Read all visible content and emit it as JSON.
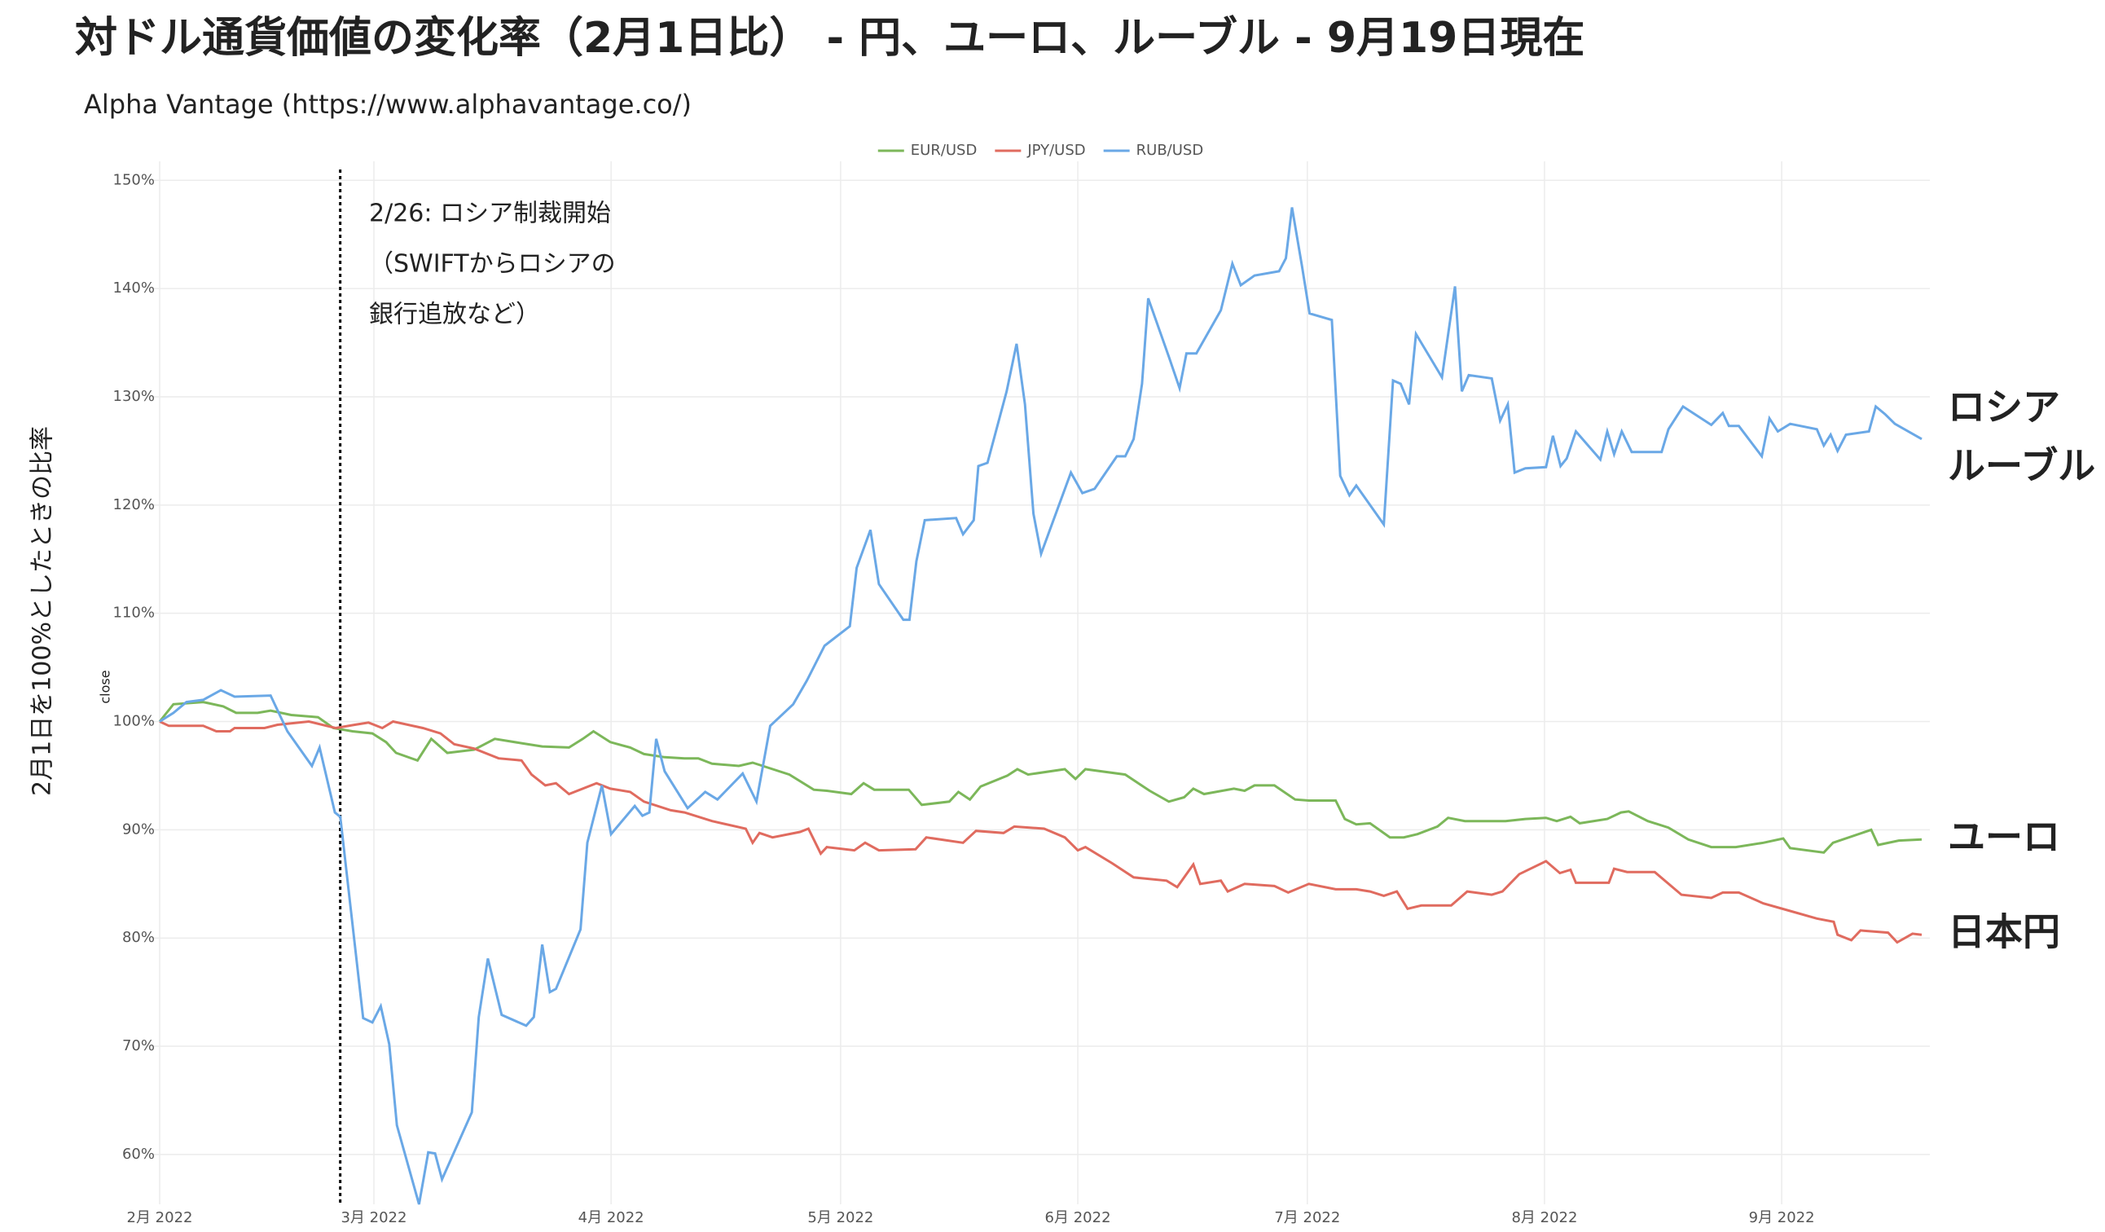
{
  "chart_data": {
    "type": "line",
    "title": "対ドル通貨価値の変化率（2月1日比） - 円、ユーロ、ルーブル - 9月19日現在",
    "subtitle": "Alpha Vantage (https://www.alphavantage.co/)",
    "y_axis_label": "2月1日を100%としたときの比率",
    "y_axis_sublabel": "close",
    "annotation": {
      "x": 23.6,
      "lines": [
        "2/26: ロシア制裁開始",
        "（SWIFTからロシアの",
        "銀行追放など）"
      ]
    },
    "xlim": [
      0,
      230.3
    ],
    "ylim": [
      55.4,
      151
    ],
    "xticks": [
      {
        "value": 0,
        "label": "2月 2022"
      },
      {
        "value": 28,
        "label": "3月 2022"
      },
      {
        "value": 59,
        "label": "4月 2022"
      },
      {
        "value": 89,
        "label": "5月 2022"
      },
      {
        "value": 120,
        "label": "6月 2022"
      },
      {
        "value": 150,
        "label": "7月 2022"
      },
      {
        "value": 181,
        "label": "8月 2022"
      },
      {
        "value": 212,
        "label": "9月 2022"
      }
    ],
    "yticks": [
      {
        "value": 60,
        "label": "60%"
      },
      {
        "value": 70,
        "label": "70%"
      },
      {
        "value": 80,
        "label": "80%"
      },
      {
        "value": 90,
        "label": "90%"
      },
      {
        "value": 100,
        "label": "100%"
      },
      {
        "value": 110,
        "label": "110%"
      },
      {
        "value": 120,
        "label": "120%"
      },
      {
        "value": 130,
        "label": "130%"
      },
      {
        "value": 140,
        "label": "140%"
      },
      {
        "value": 150,
        "label": "150%"
      }
    ],
    "grid": true,
    "legend": "top",
    "series": [
      {
        "name": "EUR/USD",
        "color": "#7cb75a",
        "end_label": [
          "ユーロ"
        ],
        "x": [
          0,
          1.8,
          5.7,
          8.3,
          10,
          12.8,
          14.5,
          17.2,
          20.7,
          22.7,
          25.2,
          27.8,
          29.6,
          30.9,
          33.7,
          35.5,
          37.6,
          41.1,
          43.8,
          47.3,
          50,
          53.5,
          55.3,
          56.7,
          58.9,
          61.5,
          63.3,
          66,
          68.6,
          70.4,
          72.2,
          75.7,
          77.5,
          82.3,
          85.5,
          87.2,
          90.4,
          92,
          93.4,
          97.9,
          99.6,
          103.2,
          104.4,
          105.9,
          107.3,
          110.8,
          112.1,
          113.5,
          118.3,
          119.7,
          121,
          126.2,
          129.4,
          131.9,
          133.9,
          135.1,
          136.5,
          140.4,
          141.8,
          143.1,
          145.7,
          148.4,
          150.2,
          153.7,
          154.9,
          156.4,
          158.2,
          160.8,
          162.6,
          164.4,
          167,
          168.4,
          170.6,
          174.1,
          175.9,
          178.5,
          181.2,
          182.6,
          184.4,
          185.6,
          189.2,
          191,
          192,
          194.5,
          197.2,
          199.8,
          202.8,
          206,
          209.6,
          212.2,
          213.1,
          217.5,
          218.7,
          223.7,
          224.6,
          227.3,
          230.3
        ],
        "values": [
          100,
          101.6,
          101.8,
          101.4,
          100.8,
          100.8,
          101,
          100.6,
          100.4,
          99.4,
          99.1,
          98.9,
          98.1,
          97.1,
          96.4,
          98.4,
          97.1,
          97.4,
          98.4,
          98,
          97.7,
          97.6,
          98.4,
          99.1,
          98.1,
          97.6,
          97,
          96.7,
          96.6,
          96.6,
          96.1,
          95.9,
          96.2,
          95.1,
          93.7,
          93.6,
          93.3,
          94.3,
          93.7,
          93.7,
          92.3,
          92.6,
          93.5,
          92.8,
          94,
          95,
          95.6,
          95.1,
          95.6,
          94.7,
          95.6,
          95.1,
          93.6,
          92.6,
          93,
          93.8,
          93.3,
          93.8,
          93.6,
          94.1,
          94.1,
          92.8,
          92.7,
          92.7,
          91,
          90.5,
          90.6,
          89.3,
          89.3,
          89.6,
          90.3,
          91.1,
          90.8,
          90.8,
          90.8,
          91,
          91.1,
          90.8,
          91.2,
          90.6,
          91,
          91.6,
          91.7,
          90.8,
          90.2,
          89.1,
          88.4,
          88.4,
          88.8,
          89.2,
          88.3,
          87.9,
          88.8,
          90,
          88.6,
          89,
          89.1
        ]
      },
      {
        "name": "JPY/USD",
        "color": "#e06b5f",
        "end_label": [
          "日本円"
        ],
        "x": [
          0,
          1.2,
          5.7,
          7.4,
          9.2,
          9.8,
          13.7,
          15.4,
          19.5,
          23,
          25.5,
          27.3,
          29.1,
          30.5,
          34.4,
          36.7,
          38.5,
          41.1,
          44.3,
          47.3,
          48.6,
          50.4,
          51.8,
          53.5,
          57.1,
          58.9,
          61.5,
          63.3,
          66.8,
          68.6,
          72.2,
          76.6,
          77.5,
          78.4,
          80.1,
          83.7,
          84.8,
          86.4,
          87.2,
          90.8,
          92.2,
          94,
          98.8,
          100.2,
          105,
          106.7,
          110.3,
          111.7,
          115.6,
          118.3,
          120,
          121,
          124.5,
          127.3,
          131.6,
          133,
          135.1,
          136,
          138.7,
          139.6,
          141.8,
          145.7,
          147.5,
          150.2,
          153.7,
          156.4,
          158.2,
          160,
          161.7,
          163.1,
          164.9,
          168.8,
          170.9,
          174.1,
          175.5,
          177.7,
          181.2,
          183,
          184.4,
          185.1,
          189.4,
          190.1,
          191.8,
          195.4,
          198.9,
          202.8,
          204.3,
          206.4,
          209.6,
          213.1,
          216.6,
          218.8,
          219.3,
          221.1,
          222.3,
          225.9,
          227.1,
          229.1,
          230.3
        ],
        "values": [
          100,
          99.6,
          99.6,
          99.1,
          99.1,
          99.4,
          99.4,
          99.7,
          100,
          99.4,
          99.7,
          99.9,
          99.4,
          100,
          99.4,
          98.9,
          97.9,
          97.5,
          96.6,
          96.4,
          95.1,
          94.1,
          94.3,
          93.3,
          94.3,
          93.8,
          93.5,
          92.6,
          91.8,
          91.6,
          90.8,
          90.1,
          88.8,
          89.7,
          89.3,
          89.8,
          90.1,
          87.8,
          88.4,
          88.1,
          88.8,
          88.1,
          88.2,
          89.3,
          88.8,
          89.9,
          89.7,
          90.3,
          90.1,
          89.3,
          88.1,
          88.4,
          86.9,
          85.6,
          85.3,
          84.7,
          86.8,
          85,
          85.3,
          84.3,
          85,
          84.8,
          84.2,
          85,
          84.5,
          84.5,
          84.3,
          83.9,
          84.3,
          82.7,
          83,
          83,
          84.3,
          84,
          84.3,
          85.9,
          87.1,
          86,
          86.3,
          85.1,
          85.1,
          86.4,
          86.1,
          86.1,
          84,
          83.7,
          84.2,
          84.2,
          83.2,
          82.5,
          81.8,
          81.5,
          80.3,
          79.8,
          80.7,
          80.5,
          79.6,
          80.4,
          80.3
        ]
      },
      {
        "name": "RUB/USD",
        "color": "#6aa8e6",
        "end_label": [
          "ロシア",
          "ルーブル"
        ],
        "x": [
          0,
          1.8,
          3.5,
          5.7,
          8,
          9.8,
          14.5,
          16.7,
          19.9,
          20.9,
          22.9,
          23.6,
          26.6,
          27.8,
          28.9,
          30,
          31,
          33.9,
          35.1,
          36,
          36.9,
          40.8,
          41.7,
          42.9,
          44.7,
          47.9,
          48.9,
          50,
          51,
          51.8,
          55,
          55.9,
          57.8,
          59,
          62.1,
          63.1,
          64,
          64.9,
          66,
          69,
          71.3,
          72.9,
          76.2,
          78,
          79.8,
          82.8,
          84.6,
          86.9,
          90.2,
          91.1,
          92.9,
          94,
          97.2,
          98,
          98.9,
          100,
          104.1,
          105,
          106.4,
          107,
          108.2,
          110.7,
          112,
          113.1,
          114.2,
          115.2,
          119.1,
          120.6,
          122.2,
          125.1,
          126.2,
          127.3,
          128.4,
          129.2,
          131.9,
          133.3,
          134.2,
          135.5,
          138.7,
          140.2,
          141.3,
          143.1,
          146.3,
          147.2,
          148,
          149.3,
          150.3,
          153.2,
          154.3,
          155.5,
          156.4,
          160,
          161.2,
          162.2,
          163.3,
          164.2,
          167.6,
          169.3,
          170.2,
          171.1,
          174.1,
          175.2,
          176.2,
          177.1,
          178.5,
          181.2,
          182.1,
          183.1,
          183.9,
          185.1,
          188.3,
          189.2,
          190.1,
          191.1,
          192.4,
          196.3,
          197.2,
          199.1,
          202.8,
          204.3,
          205.1,
          206.4,
          209.4,
          210.4,
          211.5,
          213.1,
          216.6,
          217.5,
          218.4,
          219.3,
          220.4,
          223.4,
          224.3,
          225.5,
          226.8,
          230.3
        ],
        "values": [
          100,
          100.8,
          101.8,
          102,
          102.9,
          102.3,
          102.4,
          99.1,
          95.9,
          97.6,
          91.6,
          91.2,
          72.6,
          72.2,
          73.7,
          70.2,
          62.7,
          55.4,
          60.2,
          60.1,
          57.7,
          63.9,
          72.7,
          78.1,
          72.9,
          71.9,
          72.7,
          79.4,
          75,
          75.3,
          80.8,
          88.8,
          94.1,
          89.6,
          92.2,
          91.3,
          91.6,
          98.4,
          95.4,
          92,
          93.5,
          92.8,
          95.2,
          92.6,
          99.6,
          101.6,
          103.8,
          107,
          108.8,
          114.2,
          117.7,
          112.7,
          109.4,
          109.4,
          114.8,
          118.6,
          118.8,
          117.3,
          118.6,
          123.6,
          123.9,
          130.5,
          134.9,
          129.3,
          119.2,
          115.5,
          123,
          121.1,
          121.5,
          124.5,
          124.5,
          126.1,
          131.2,
          139.1,
          133.7,
          130.8,
          134,
          134,
          138,
          142.3,
          140.3,
          141.2,
          141.6,
          142.8,
          147.5,
          142.1,
          137.7,
          137.1,
          122.7,
          120.9,
          121.8,
          118.2,
          131.5,
          131.2,
          129.3,
          135.8,
          131.8,
          140.2,
          130.5,
          132,
          131.7,
          127.8,
          129.3,
          123,
          123.4,
          123.5,
          126.4,
          123.6,
          124.3,
          126.8,
          124.2,
          126.8,
          124.7,
          126.8,
          124.9,
          124.9,
          127,
          129.1,
          127.4,
          128.5,
          127.3,
          127.3,
          124.5,
          128,
          126.8,
          127.5,
          127,
          125.5,
          126.5,
          125,
          126.5,
          126.8,
          129.1,
          128.4,
          127.5,
          126.1
        ]
      }
    ]
  }
}
